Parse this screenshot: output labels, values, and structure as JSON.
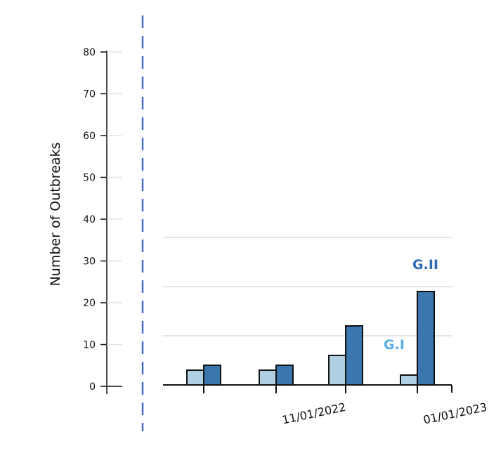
{
  "chart_data": {
    "type": "bar",
    "ylabel": "Number of Outbreaks",
    "left_axis": {
      "ticks": [
        0,
        10,
        20,
        30,
        40,
        50,
        60,
        70,
        80
      ],
      "ylim": [
        0,
        80
      ]
    },
    "plot": {
      "ylim": [
        0,
        30
      ],
      "gridlines": [
        10,
        20,
        30
      ],
      "categories": [
        "",
        "11/01/2022",
        "",
        "01/01/2023"
      ],
      "series": [
        {
          "name": "G.I",
          "values": [
            3,
            3,
            6,
            2
          ],
          "color": "#b0cfe3",
          "label_color": "#5aade6"
        },
        {
          "name": "G.II",
          "values": [
            4,
            4,
            12,
            19
          ],
          "color": "#3b76ae",
          "label_color": "#2f6db3"
        }
      ]
    },
    "divider_color": "#4a6fc0"
  }
}
